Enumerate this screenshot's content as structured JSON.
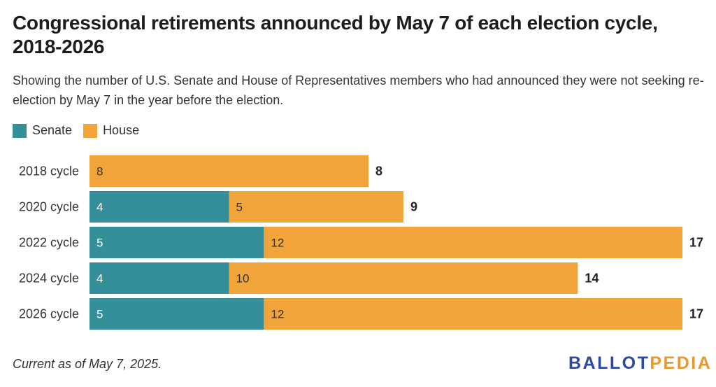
{
  "title": "Congressional retirements announced by May 7 of each election cycle, 2018-2026",
  "subtitle": "Showing the number of U.S. Senate and House of Representatives members who had announced they were not seeking re-election by May 7 in the year before the election.",
  "legend": [
    {
      "label": "Senate",
      "color": "#358f9a"
    },
    {
      "label": "House",
      "color": "#f1a43a"
    }
  ],
  "footer": {
    "note": "Current as of May 7, 2025.",
    "logo_part1": "BALLOT",
    "logo_part2": "PEDIA"
  },
  "chart_data": {
    "type": "bar",
    "orientation": "horizontal",
    "stacked": true,
    "categories": [
      "2018 cycle",
      "2020 cycle",
      "2022 cycle",
      "2024 cycle",
      "2026 cycle"
    ],
    "series": [
      {
        "name": "Senate",
        "color": "#358f9a",
        "values": [
          0,
          4,
          5,
          4,
          5
        ]
      },
      {
        "name": "House",
        "color": "#f1a43a",
        "values": [
          8,
          5,
          12,
          10,
          12
        ]
      }
    ],
    "totals": [
      8,
      9,
      17,
      14,
      17
    ],
    "xlim": [
      0,
      17
    ],
    "grid": false,
    "legend_position": "top-left"
  }
}
